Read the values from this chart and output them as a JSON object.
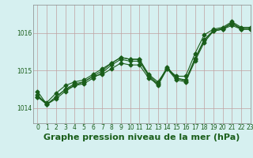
{
  "title": "Graphe pression niveau de la mer (hPa)",
  "background_color": "#d6f0f0",
  "grid_color": "#c0a0a0",
  "line_color": "#1a5e1a",
  "spine_color": "#888888",
  "xlim": [
    -0.5,
    23
  ],
  "ylim": [
    1013.6,
    1016.75
  ],
  "yticks": [
    1014,
    1015,
    1016
  ],
  "xticks": [
    0,
    1,
    2,
    3,
    4,
    5,
    6,
    7,
    8,
    9,
    10,
    11,
    12,
    13,
    14,
    15,
    16,
    17,
    18,
    19,
    20,
    21,
    22,
    23
  ],
  "series": [
    [
      1014.3,
      1014.1,
      1014.3,
      1014.5,
      1014.6,
      1014.7,
      1014.85,
      1014.9,
      1015.05,
      1015.2,
      1015.15,
      1015.15,
      1014.8,
      1014.65,
      1015.1,
      1014.8,
      1014.75,
      1015.3,
      1015.8,
      1016.05,
      1016.1,
      1016.2,
      1016.1,
      1016.1
    ],
    [
      1014.3,
      1014.15,
      1014.4,
      1014.6,
      1014.7,
      1014.75,
      1014.9,
      1015.05,
      1015.2,
      1015.35,
      1015.3,
      1015.3,
      1014.9,
      1014.7,
      1015.05,
      1014.85,
      1014.85,
      1015.45,
      1015.95,
      1016.1,
      1016.15,
      1016.3,
      1016.15,
      1016.15
    ],
    [
      1014.45,
      1014.1,
      1014.25,
      1014.45,
      1014.6,
      1014.65,
      1014.8,
      1014.95,
      1015.15,
      1015.3,
      1015.25,
      1015.25,
      1014.85,
      1014.6,
      1015.05,
      1014.75,
      1014.7,
      1015.25,
      1015.75,
      1016.05,
      1016.1,
      1016.25,
      1016.1,
      1016.1
    ],
    [
      1014.35,
      1014.1,
      1014.3,
      1014.5,
      1014.65,
      1014.7,
      1014.85,
      1015.0,
      1015.2,
      1015.35,
      1015.3,
      1015.3,
      1014.88,
      1014.65,
      1015.05,
      1014.8,
      1014.72,
      1015.32,
      1015.82,
      1016.07,
      1016.12,
      1016.27,
      1016.12,
      1016.12
    ]
  ],
  "marker": "D",
  "marker_size": 2.5,
  "linewidth": 0.8,
  "title_fontsize": 8,
  "tick_fontsize": 5.5
}
